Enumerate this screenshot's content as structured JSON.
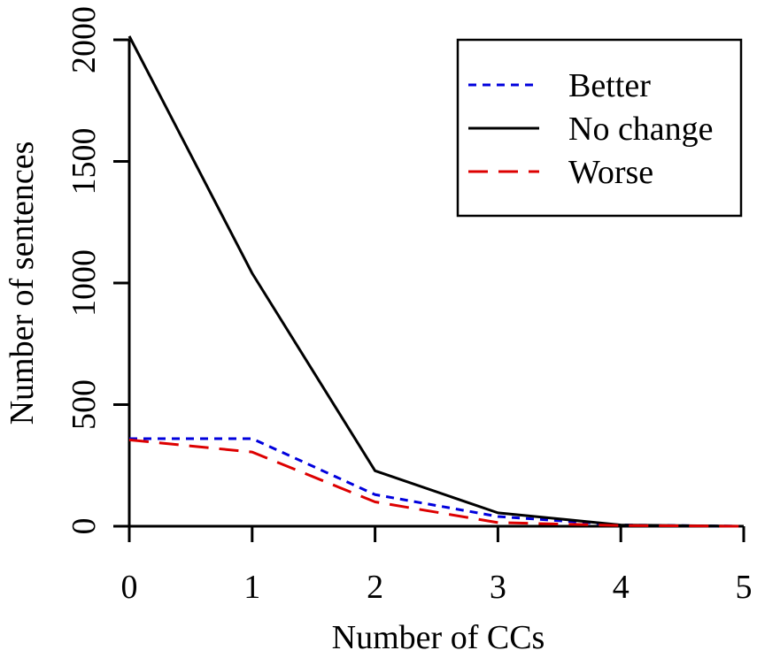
{
  "chart_data": {
    "type": "line",
    "title": "",
    "xlabel": "Number of CCs",
    "ylabel": "Number of sentences",
    "x": [
      0,
      1,
      2,
      3,
      4,
      5
    ],
    "xlim": [
      0,
      5
    ],
    "ylim": [
      0,
      2000
    ],
    "xticks": [
      "0",
      "1",
      "2",
      "3",
      "4",
      "5"
    ],
    "yticks": [
      "0",
      "500",
      "1000",
      "1500",
      "2000"
    ],
    "grid": false,
    "legend_position": "top-right",
    "series": [
      {
        "name": "Better",
        "values": [
          360,
          360,
          130,
          40,
          5,
          0
        ],
        "color": "#0000dd",
        "style": "dotted"
      },
      {
        "name": "No change",
        "values": [
          2015,
          1040,
          228,
          55,
          5,
          0
        ],
        "color": "#000000",
        "style": "solid"
      },
      {
        "name": "Worse",
        "values": [
          355,
          305,
          100,
          15,
          3,
          0
        ],
        "color": "#dd0000",
        "style": "dashed"
      }
    ]
  }
}
